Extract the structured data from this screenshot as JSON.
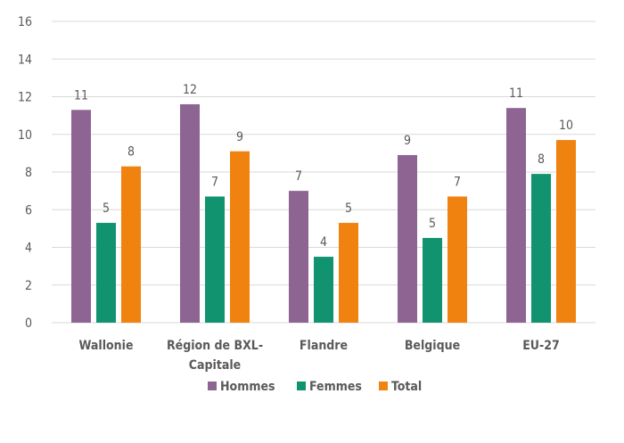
{
  "colors": {
    "hommes": "#8e6493",
    "femmes": "#11936f",
    "total": "#f0820f",
    "grid": "#d9d9d9",
    "text": "#595959"
  },
  "chart_data": {
    "type": "bar",
    "title": "",
    "xlabel": "",
    "ylabel": "",
    "ylim": [
      0,
      16
    ],
    "yticks": [
      0,
      2,
      4,
      6,
      8,
      10,
      12,
      14,
      16
    ],
    "grid": true,
    "legend_position": "bottom",
    "categories": [
      [
        "Wallonie"
      ],
      [
        "Région de BXL-",
        "Capitale"
      ],
      [
        "Flandre"
      ],
      [
        "Belgique"
      ],
      [
        "EU-27"
      ]
    ],
    "series": [
      {
        "name": "Hommes",
        "color_key": "hommes",
        "values": [
          11.3,
          11.6,
          7.0,
          8.9,
          11.4
        ],
        "labels": [
          "11",
          "12",
          "7",
          "9",
          "11"
        ]
      },
      {
        "name": "Femmes",
        "color_key": "femmes",
        "values": [
          5.3,
          6.7,
          3.5,
          4.5,
          7.9
        ],
        "labels": [
          "5",
          "7",
          "4",
          "5",
          "8"
        ]
      },
      {
        "name": "Total",
        "color_key": "total",
        "values": [
          8.3,
          9.1,
          5.3,
          6.7,
          9.7
        ],
        "labels": [
          "8",
          "9",
          "5",
          "7",
          "10"
        ]
      }
    ]
  }
}
